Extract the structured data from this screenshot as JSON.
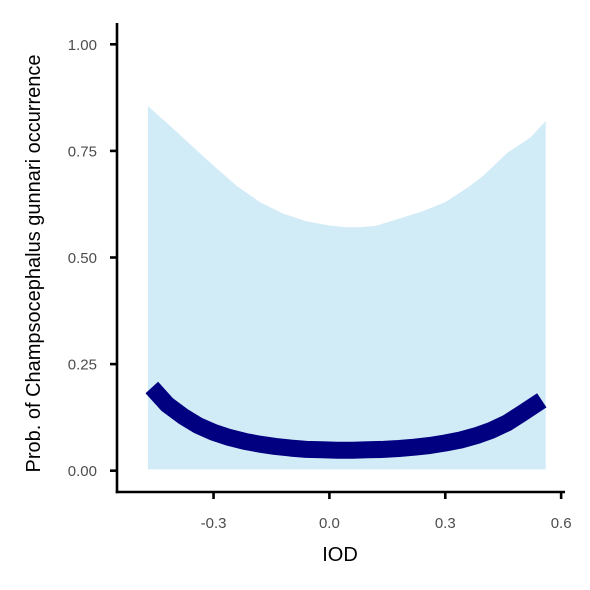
{
  "chart_data": {
    "type": "line",
    "xlabel": "IOD",
    "ylabel": "Prob. of  Champsocephalus gunnari  occurrence",
    "xlim": [
      -0.55,
      0.61
    ],
    "ylim": [
      -0.05,
      1.05
    ],
    "x_ticks": [
      {
        "value": -0.3,
        "label": "-0.3"
      },
      {
        "value": 0.0,
        "label": "0.0"
      },
      {
        "value": 0.3,
        "label": "0.3"
      },
      {
        "value": 0.6,
        "label": "0.6"
      }
    ],
    "y_ticks": [
      {
        "value": 0.0,
        "label": "0.00"
      },
      {
        "value": 0.25,
        "label": "0.25"
      },
      {
        "value": 0.5,
        "label": "0.50"
      },
      {
        "value": 0.75,
        "label": "0.75"
      },
      {
        "value": 1.0,
        "label": "1.00"
      }
    ],
    "grid": false,
    "fit": {
      "x": [
        -0.46,
        -0.42,
        -0.38,
        -0.34,
        -0.3,
        -0.26,
        -0.22,
        -0.18,
        -0.14,
        -0.1,
        -0.06,
        -0.02,
        0.02,
        0.06,
        0.1,
        0.14,
        0.18,
        0.22,
        0.26,
        0.3,
        0.34,
        0.38,
        0.42,
        0.46,
        0.5,
        0.55
      ],
      "y": [
        0.195,
        0.155,
        0.128,
        0.106,
        0.09,
        0.078,
        0.069,
        0.062,
        0.057,
        0.053,
        0.05,
        0.049,
        0.048,
        0.048,
        0.049,
        0.05,
        0.052,
        0.055,
        0.059,
        0.065,
        0.072,
        0.082,
        0.095,
        0.112,
        0.135,
        0.165
      ]
    },
    "ci_upper": {
      "x": [
        -0.47,
        -0.42,
        -0.36,
        -0.3,
        -0.24,
        -0.18,
        -0.12,
        -0.06,
        0.0,
        0.04,
        0.08,
        0.12,
        0.18,
        0.24,
        0.3,
        0.36,
        0.4,
        0.46,
        0.52,
        0.56
      ],
      "y": [
        0.855,
        0.815,
        0.765,
        0.715,
        0.668,
        0.63,
        0.603,
        0.585,
        0.575,
        0.571,
        0.571,
        0.574,
        0.591,
        0.608,
        0.63,
        0.665,
        0.693,
        0.745,
        0.781,
        0.82
      ]
    },
    "ci_lower": {
      "x": [
        -0.47,
        0.56
      ],
      "y": [
        0.003,
        0.003
      ]
    },
    "colors": {
      "line": "#000080",
      "ribbon": "#d1ebf7",
      "axis": "#000000",
      "tick_text": "#4d4d4d"
    }
  }
}
